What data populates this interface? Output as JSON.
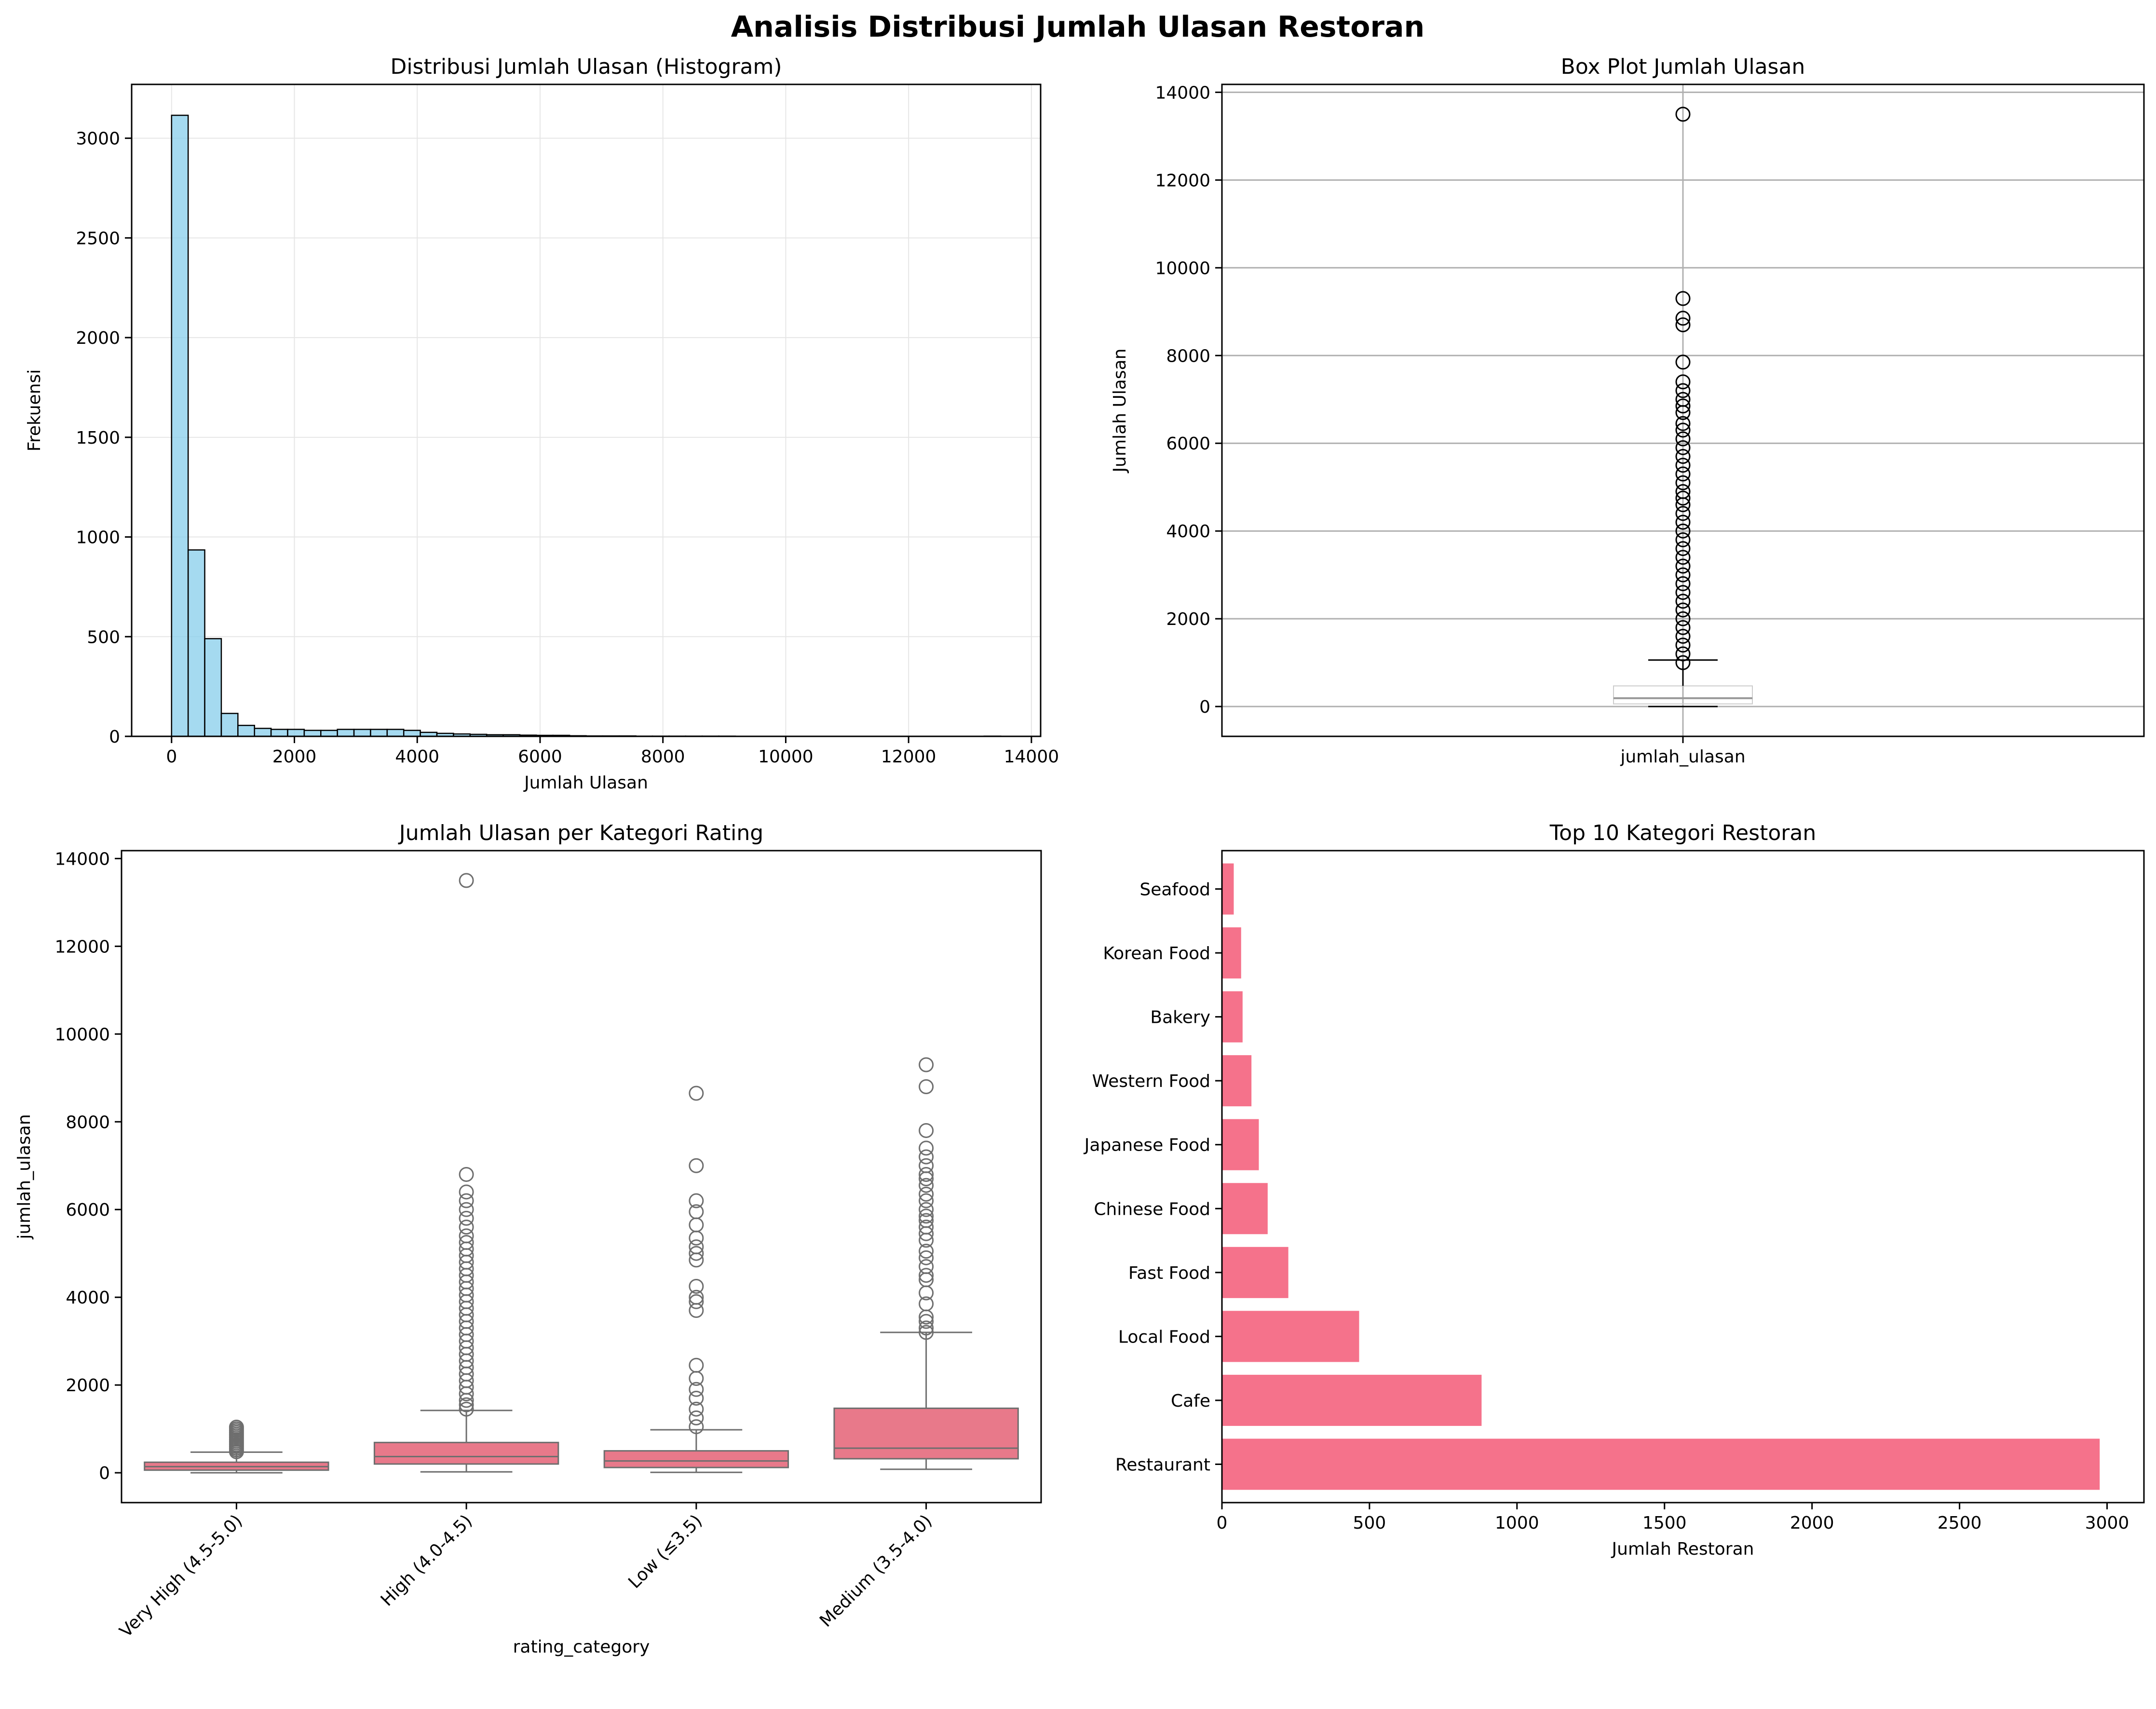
{
  "title": "Analisis Distribusi Jumlah Ulasan Restoran",
  "chart_data": [
    {
      "type": "bar",
      "subtype": "histogram",
      "title": "Distribusi Jumlah Ulasan (Histogram)",
      "xlabel": "Jumlah Ulasan",
      "ylabel": "Frekuensi",
      "xlim": [
        -650,
        14150
      ],
      "ylim": [
        0,
        3270
      ],
      "xticks": [
        0,
        2000,
        4000,
        6000,
        8000,
        10000,
        12000,
        14000
      ],
      "yticks": [
        0,
        500,
        1000,
        1500,
        2000,
        2500,
        3000
      ],
      "grid": true,
      "color": "#87ceeb",
      "bin_width": 270,
      "bin_start": 0,
      "values": [
        3115,
        935,
        490,
        115,
        55,
        40,
        35,
        35,
        30,
        30,
        35,
        35,
        35,
        35,
        30,
        20,
        15,
        12,
        10,
        8,
        8,
        6,
        5,
        5,
        3,
        2,
        2,
        2,
        1,
        1,
        1,
        1,
        1,
        1,
        0,
        0,
        0,
        0,
        0,
        0,
        0,
        0,
        0,
        0,
        0,
        0,
        0,
        0,
        0,
        1
      ]
    },
    {
      "type": "box",
      "title": "Box Plot Jumlah Ulasan",
      "ylabel": "Jumlah Ulasan",
      "categories": [
        "jumlah_ulasan"
      ],
      "ylim": [
        -680,
        14180
      ],
      "yticks": [
        0,
        2000,
        4000,
        6000,
        8000,
        10000,
        12000,
        14000
      ],
      "grid": true,
      "box": {
        "whisker_low": 0,
        "q1": 60,
        "median": 190,
        "q3": 470,
        "whisker_high": 1060
      },
      "outliers": [
        1000,
        1200,
        1400,
        1600,
        1800,
        2000,
        2200,
        2400,
        2600,
        2800,
        3000,
        3200,
        3400,
        3600,
        3800,
        4000,
        4200,
        4400,
        4600,
        4750,
        4900,
        5100,
        5300,
        5500,
        5700,
        5900,
        6100,
        6300,
        6450,
        6700,
        6850,
        7000,
        7200,
        7400,
        7850,
        8700,
        8850,
        9300,
        13500
      ]
    },
    {
      "type": "box",
      "title": "Jumlah Ulasan per Kategori Rating",
      "xlabel": "rating_category",
      "ylabel": "jumlah_ulasan",
      "categories": [
        "Very High (4.5-5.0)",
        "High (4.0-4.5)",
        "Low (≤3.5)",
        "Medium (3.5-4.0)"
      ],
      "ylim": [
        -680,
        14180
      ],
      "yticks": [
        0,
        2000,
        4000,
        6000,
        8000,
        10000,
        12000,
        14000
      ],
      "grid": false,
      "color": "#e8798a",
      "boxes": [
        {
          "whisker_low": 0,
          "q1": 60,
          "median": 140,
          "q3": 240,
          "whisker_high": 470
        },
        {
          "whisker_low": 20,
          "q1": 200,
          "median": 370,
          "q3": 690,
          "whisker_high": 1420
        },
        {
          "whisker_low": 10,
          "q1": 120,
          "median": 270,
          "q3": 500,
          "whisker_high": 980
        },
        {
          "whisker_low": 80,
          "q1": 320,
          "median": 560,
          "q3": 1470,
          "whisker_high": 3200
        }
      ],
      "outliers": [
        [
          480,
          520,
          560,
          600,
          640,
          680,
          720,
          760,
          800,
          840,
          880,
          920,
          960,
          1000,
          1040
        ],
        [
          1450,
          1550,
          1650,
          1800,
          1950,
          2100,
          2250,
          2400,
          2550,
          2700,
          2850,
          3000,
          3150,
          3300,
          3450,
          3600,
          3750,
          3900,
          4050,
          4200,
          4350,
          4500,
          4650,
          4800,
          4950,
          5100,
          5250,
          5400,
          5600,
          5800,
          6000,
          6200,
          6400,
          6800,
          13500
        ],
        [
          1050,
          1250,
          1450,
          1700,
          1900,
          2150,
          2450,
          3700,
          3900,
          4000,
          4250,
          4850,
          5000,
          5150,
          5350,
          5650,
          5950,
          6200,
          7000,
          8650
        ],
        [
          3200,
          3300,
          3450,
          3550,
          3850,
          4100,
          4400,
          4500,
          4700,
          4900,
          5050,
          5300,
          5450,
          5600,
          5750,
          5850,
          6000,
          6200,
          6350,
          6550,
          6700,
          6800,
          7000,
          7200,
          7400,
          7800,
          8800,
          9300
        ]
      ]
    },
    {
      "type": "bar",
      "orientation": "horizontal",
      "title": "Top 10 Kategori Restoran",
      "xlabel": "Jumlah Restoran",
      "ylabel": "",
      "categories": [
        "Restaurant",
        "Cafe",
        "Local Food",
        "Fast Food",
        "Chinese Food",
        "Japanese Food",
        "Western Food",
        "Bakery",
        "Korean Food",
        "Seafood"
      ],
      "values": [
        2975,
        880,
        465,
        225,
        155,
        125,
        100,
        70,
        65,
        40
      ],
      "xlim": [
        0,
        3125
      ],
      "xticks": [
        0,
        500,
        1000,
        1500,
        2000,
        2500,
        3000
      ],
      "color": "#f5728b"
    }
  ]
}
